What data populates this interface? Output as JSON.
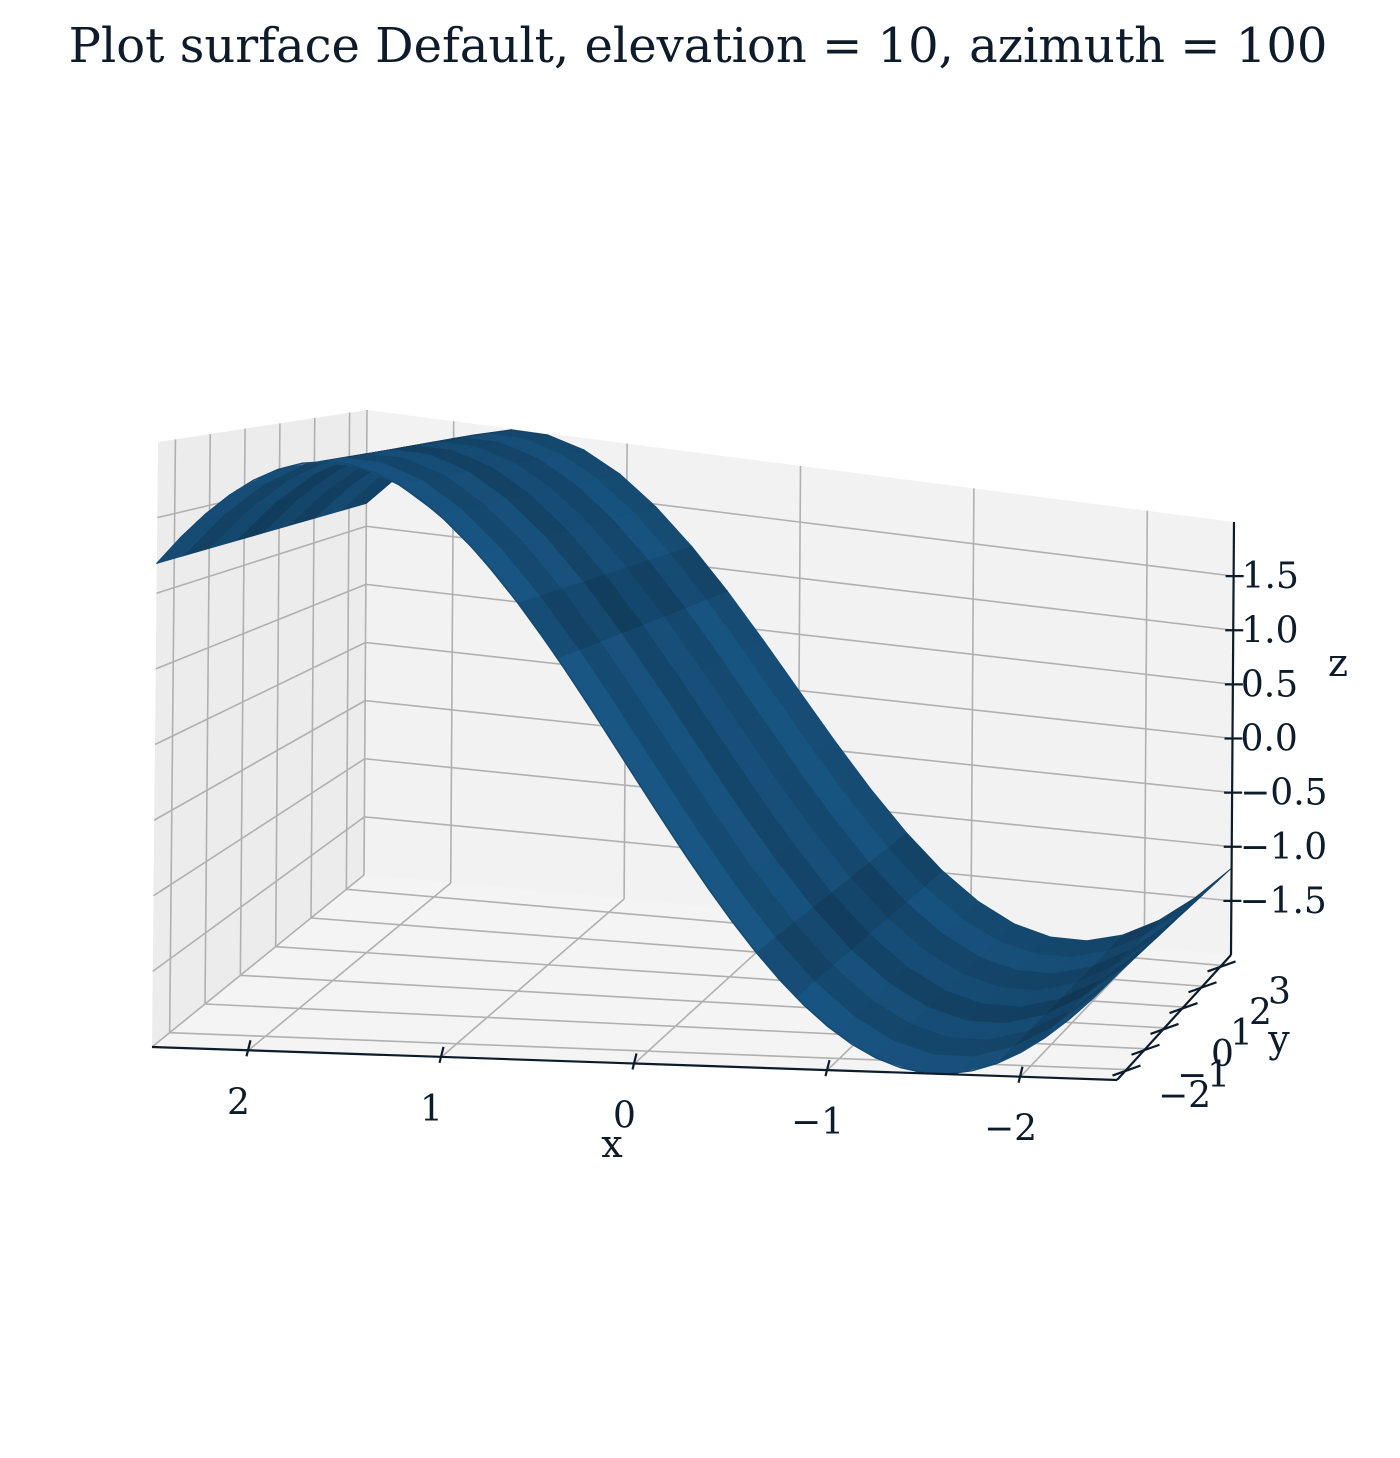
{
  "chart_data": {
    "type": "surface",
    "title": "Plot surface Default, elevation = 10, azimuth = 100",
    "xlabel": "x",
    "ylabel": "y",
    "zlabel": "z",
    "elevation": 10,
    "azimuth": 100,
    "surface_function": "z = 2*sin(x)",
    "xlim": [
      -2.5,
      2.5
    ],
    "ylim": [
      -2.5,
      3.5
    ],
    "zlim": [
      -2,
      2
    ],
    "xticks": [
      2,
      1,
      0,
      -1,
      -2
    ],
    "xtick_labels": [
      "2",
      "1",
      "0",
      "−1",
      "−2"
    ],
    "yticks": [
      -2,
      -1,
      0,
      1,
      2,
      3
    ],
    "ytick_labels": [
      "−2",
      "−1",
      "0",
      "1",
      "2",
      "3"
    ],
    "zticks": [
      1.5,
      1.0,
      0.5,
      0.0,
      -0.5,
      -1.0,
      -1.5
    ],
    "ztick_labels": [
      "1.5",
      "1.0",
      "0.5",
      "0.0",
      "−0.5",
      "−1.0",
      "−1.5"
    ],
    "surface_x": [
      -2.5,
      -2.0,
      -1.5,
      -1.0,
      -0.5,
      0.0,
      0.5,
      1.0,
      1.5,
      2.0,
      2.5
    ],
    "surface_y": [
      -2.5,
      3.5
    ],
    "surface_z": [
      -1.2,
      -1.82,
      -2.0,
      -1.68,
      -0.96,
      0.0,
      0.96,
      1.68,
      2.0,
      1.82,
      1.2
    ],
    "surface_color": "#1a5a8a",
    "surface_color_dark": "#134a73",
    "pane_color": "#f2f2f2",
    "grid_color": "#b0b0b0",
    "grid": true
  }
}
